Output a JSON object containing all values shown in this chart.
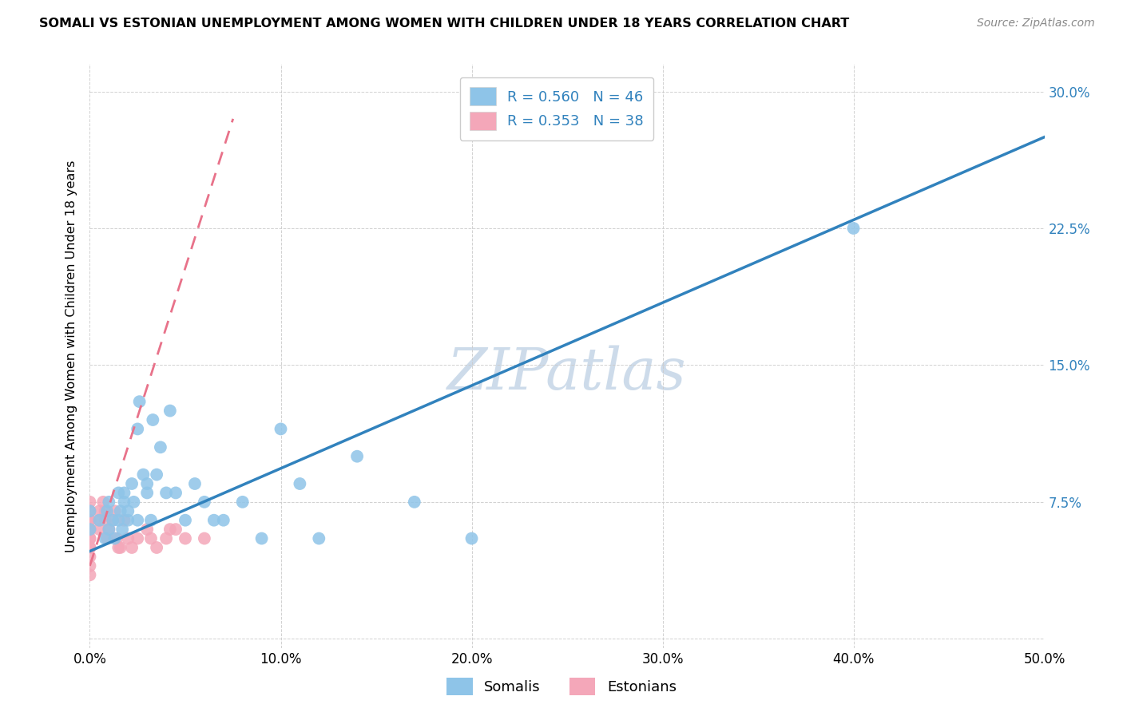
{
  "title": "SOMALI VS ESTONIAN UNEMPLOYMENT AMONG WOMEN WITH CHILDREN UNDER 18 YEARS CORRELATION CHART",
  "source": "Source: ZipAtlas.com",
  "ylabel": "Unemployment Among Women with Children Under 18 years",
  "xlim": [
    0.0,
    0.5
  ],
  "ylim": [
    -0.005,
    0.315
  ],
  "xticks": [
    0.0,
    0.1,
    0.2,
    0.3,
    0.4,
    0.5
  ],
  "yticks": [
    0.0,
    0.075,
    0.15,
    0.225,
    0.3
  ],
  "xtick_labels": [
    "0.0%",
    "10.0%",
    "20.0%",
    "30.0%",
    "40.0%",
    "50.0%"
  ],
  "ytick_labels": [
    "",
    "7.5%",
    "15.0%",
    "22.5%",
    "30.0%"
  ],
  "somali_R": 0.56,
  "somali_N": 46,
  "estonian_R": 0.353,
  "estonian_N": 38,
  "somali_color": "#8ec4e8",
  "estonian_color": "#f4a7b9",
  "somali_line_color": "#3182bd",
  "estonian_line_color": "#e8728a",
  "legend_text_color": "#3182bd",
  "watermark_color": "#c8d8e8",
  "somali_line_x": [
    0.0,
    0.5
  ],
  "somali_line_y": [
    0.048,
    0.275
  ],
  "estonian_line_x": [
    0.0,
    0.075
  ],
  "estonian_line_y": [
    0.04,
    0.285
  ],
  "somali_x": [
    0.0,
    0.0,
    0.005,
    0.008,
    0.009,
    0.01,
    0.01,
    0.012,
    0.013,
    0.015,
    0.015,
    0.016,
    0.017,
    0.018,
    0.018,
    0.02,
    0.02,
    0.022,
    0.023,
    0.025,
    0.025,
    0.026,
    0.028,
    0.03,
    0.03,
    0.032,
    0.033,
    0.035,
    0.037,
    0.04,
    0.042,
    0.045,
    0.05,
    0.055,
    0.06,
    0.065,
    0.07,
    0.08,
    0.09,
    0.1,
    0.11,
    0.12,
    0.14,
    0.17,
    0.2,
    0.4
  ],
  "somali_y": [
    0.06,
    0.07,
    0.065,
    0.055,
    0.07,
    0.06,
    0.075,
    0.065,
    0.055,
    0.08,
    0.065,
    0.07,
    0.06,
    0.075,
    0.08,
    0.065,
    0.07,
    0.085,
    0.075,
    0.065,
    0.115,
    0.13,
    0.09,
    0.08,
    0.085,
    0.065,
    0.12,
    0.09,
    0.105,
    0.08,
    0.125,
    0.08,
    0.065,
    0.085,
    0.075,
    0.065,
    0.065,
    0.075,
    0.055,
    0.115,
    0.085,
    0.055,
    0.1,
    0.075,
    0.055,
    0.225
  ],
  "estonian_x": [
    0.0,
    0.0,
    0.0,
    0.0,
    0.0,
    0.0,
    0.0,
    0.0,
    0.0,
    0.0,
    0.0,
    0.0,
    0.0,
    0.005,
    0.005,
    0.005,
    0.007,
    0.008,
    0.008,
    0.009,
    0.01,
    0.012,
    0.013,
    0.014,
    0.015,
    0.016,
    0.018,
    0.02,
    0.022,
    0.025,
    0.03,
    0.032,
    0.035,
    0.04,
    0.042,
    0.045,
    0.05,
    0.06
  ],
  "estonian_y": [
    0.05,
    0.055,
    0.06,
    0.065,
    0.055,
    0.06,
    0.065,
    0.07,
    0.075,
    0.05,
    0.045,
    0.04,
    0.035,
    0.06,
    0.065,
    0.07,
    0.075,
    0.065,
    0.07,
    0.055,
    0.06,
    0.065,
    0.07,
    0.055,
    0.05,
    0.05,
    0.065,
    0.055,
    0.05,
    0.055,
    0.06,
    0.055,
    0.05,
    0.055,
    0.06,
    0.06,
    0.055,
    0.055
  ]
}
